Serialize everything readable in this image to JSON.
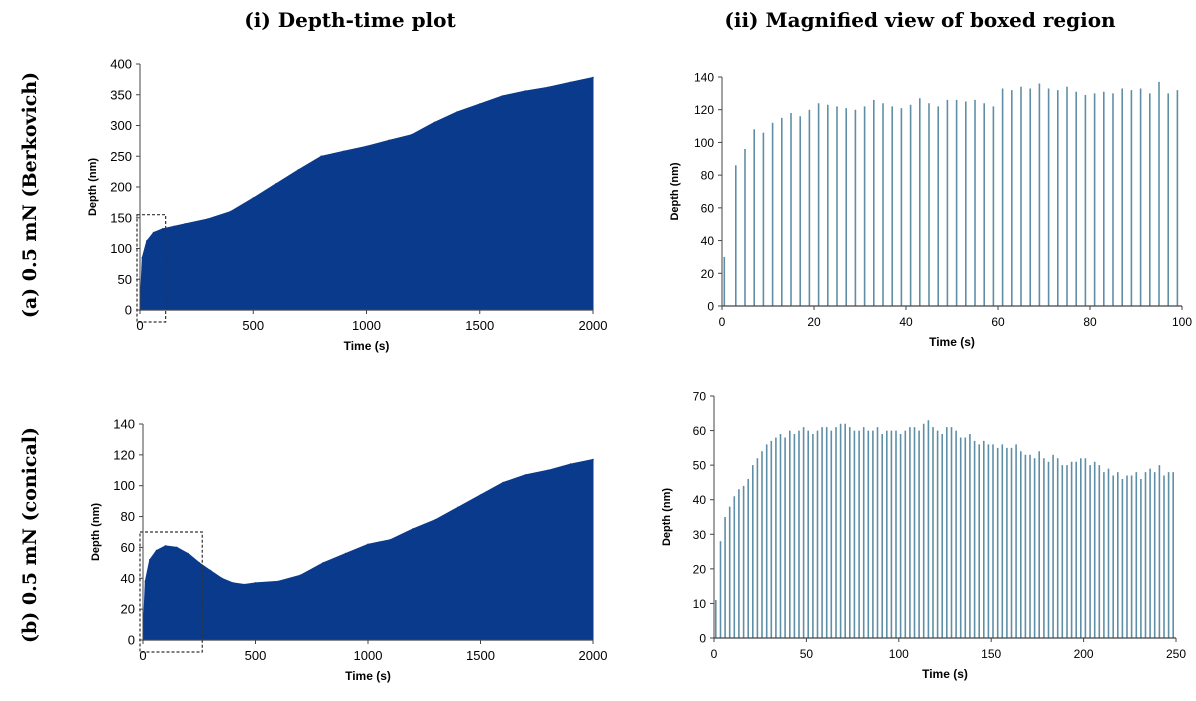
{
  "column_titles": [
    "(i) Depth-time plot",
    "(ii) Magnified view of boxed region"
  ],
  "row_titles": [
    "(a) 0.5 mN (Berkovich)",
    "(b) 0.5 mN (conical)"
  ],
  "colors": {
    "fill": "#0a3a8c",
    "spike": "#5f8fa6",
    "box": "#333333"
  },
  "chart_data": [
    {
      "type": "area",
      "xlabel": "Time (s)",
      "ylabel": "Depth (nm)",
      "xlim": [
        0,
        2000
      ],
      "ylim": [
        0,
        400
      ],
      "xticks": [
        0,
        500,
        1000,
        1500,
        2000
      ],
      "yticks": [
        0,
        50,
        100,
        150,
        200,
        250,
        300,
        350,
        400
      ],
      "x": [
        0,
        10,
        30,
        60,
        100,
        150,
        200,
        300,
        400,
        500,
        600,
        700,
        800,
        900,
        1000,
        1100,
        1200,
        1300,
        1400,
        1500,
        1600,
        1700,
        1800,
        1900,
        2000
      ],
      "y": [
        0,
        85,
        112,
        126,
        132,
        136,
        140,
        148,
        160,
        182,
        205,
        228,
        250,
        258,
        266,
        276,
        285,
        305,
        322,
        335,
        348,
        356,
        362,
        370,
        378
      ],
      "boxed_region": {
        "x": [
          0,
          100
        ],
        "y": [
          0,
          155
        ]
      }
    },
    {
      "type": "bar",
      "xlabel": "Time (s)",
      "ylabel": "Depth (nm)",
      "xlim": [
        0,
        100
      ],
      "ylim": [
        0,
        140
      ],
      "xticks": [
        0,
        20,
        40,
        60,
        80,
        100
      ],
      "yticks": [
        0,
        20,
        40,
        60,
        80,
        100,
        120,
        140
      ],
      "x": [
        0.5,
        3,
        5,
        7,
        9,
        11,
        13,
        15,
        17,
        19,
        21,
        23,
        25,
        27,
        29,
        31,
        33,
        35,
        37,
        39,
        41,
        43,
        45,
        47,
        49,
        51,
        53,
        55,
        57,
        59,
        61,
        63,
        65,
        67,
        69,
        71,
        73,
        75,
        77,
        79,
        81,
        83,
        85,
        87,
        89,
        91,
        93,
        95,
        97,
        99
      ],
      "values": [
        30,
        86,
        96,
        108,
        106,
        112,
        115,
        118,
        116,
        120,
        124,
        123,
        122,
        121,
        120,
        122,
        126,
        124,
        122,
        121,
        123,
        127,
        124,
        122,
        126,
        126,
        125,
        126,
        124,
        122,
        133,
        132,
        134,
        133,
        136,
        133,
        132,
        134,
        131,
        129,
        130,
        131,
        130,
        133,
        132,
        133,
        130,
        137,
        130,
        132
      ]
    },
    {
      "type": "area",
      "xlabel": "Time (s)",
      "ylabel": "Depth (nm)",
      "xlim": [
        0,
        2000
      ],
      "ylim": [
        0,
        140
      ],
      "xticks": [
        0,
        500,
        1000,
        1500,
        2000
      ],
      "yticks": [
        0,
        20,
        40,
        60,
        80,
        100,
        120,
        140
      ],
      "x": [
        0,
        10,
        30,
        60,
        100,
        150,
        200,
        250,
        300,
        350,
        400,
        450,
        500,
        600,
        700,
        800,
        900,
        1000,
        1100,
        1200,
        1300,
        1400,
        1500,
        1600,
        1700,
        1800,
        1900,
        2000
      ],
      "y": [
        0,
        38,
        52,
        58,
        61,
        60,
        56,
        50,
        45,
        40,
        37,
        36,
        37,
        38,
        42,
        50,
        56,
        62,
        65,
        72,
        78,
        86,
        94,
        102,
        107,
        110,
        114,
        117
      ],
      "boxed_region": {
        "x": [
          0,
          250
        ],
        "y": [
          0,
          70
        ]
      }
    },
    {
      "type": "bar",
      "xlabel": "Time (s)",
      "ylabel": "Depth (nm)",
      "xlim": [
        0,
        250
      ],
      "ylim": [
        0,
        70
      ],
      "xticks": [
        0,
        50,
        100,
        150,
        200,
        250
      ],
      "yticks": [
        0,
        10,
        20,
        30,
        40,
        50,
        60,
        70
      ],
      "x": [
        1,
        3.5,
        6,
        8.5,
        11,
        13.5,
        16,
        18.5,
        21,
        23.5,
        26,
        28.5,
        31,
        33.5,
        36,
        38.5,
        41,
        43.5,
        46,
        48.5,
        51,
        53.5,
        56,
        58.5,
        61,
        63.5,
        66,
        68.5,
        71,
        73.5,
        76,
        78.5,
        81,
        83.5,
        86,
        88.5,
        91,
        93.5,
        96,
        98.5,
        101,
        103.5,
        106,
        108.5,
        111,
        113.5,
        116,
        118.5,
        121,
        123.5,
        126,
        128.5,
        131,
        133.5,
        136,
        138.5,
        141,
        143.5,
        146,
        148.5,
        151,
        153.5,
        156,
        158.5,
        161,
        163.5,
        166,
        168.5,
        171,
        173.5,
        176,
        178.5,
        181,
        183.5,
        186,
        188.5,
        191,
        193.5,
        196,
        198.5,
        201,
        203.5,
        206,
        208.5,
        211,
        213.5,
        216,
        218.5,
        221,
        223.5,
        226,
        228.5,
        231,
        233.5,
        236,
        238.5,
        241,
        243.5,
        246,
        248.5
      ],
      "values": [
        11,
        28,
        35,
        38,
        41,
        43,
        44,
        46,
        50,
        52,
        54,
        56,
        57,
        58,
        59,
        58,
        60,
        59,
        60,
        61,
        60,
        59,
        60,
        61,
        61,
        60,
        61,
        62,
        62,
        61,
        60,
        60,
        61,
        60,
        60,
        61,
        59,
        60,
        60,
        60,
        59,
        60,
        61,
        61,
        60,
        62,
        63,
        61,
        60,
        59,
        61,
        61,
        60,
        58,
        58,
        59,
        57,
        56,
        57,
        56,
        56,
        55,
        56,
        55,
        55,
        56,
        54,
        53,
        53,
        52,
        54,
        52,
        51,
        53,
        52,
        50,
        50,
        51,
        51,
        52,
        52,
        50,
        51,
        50,
        48,
        49,
        47,
        48,
        46,
        47,
        47,
        48,
        46,
        48,
        49,
        48,
        50,
        47,
        48,
        48
      ]
    }
  ]
}
